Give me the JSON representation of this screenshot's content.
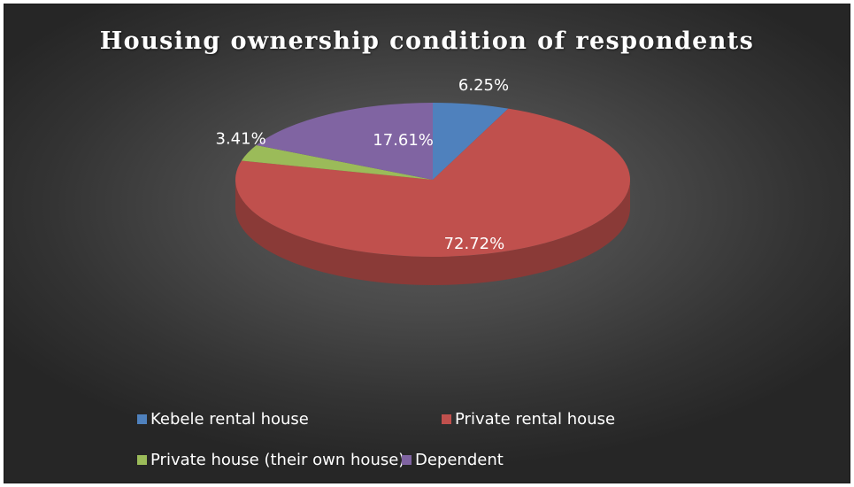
{
  "chart_data": {
    "type": "pie",
    "title": "Housing ownership condition of respondents",
    "categories": [
      "Kebele rental house",
      "Private rental house",
      "Private house (their own house)",
      "Dependent"
    ],
    "values": [
      6.25,
      72.72,
      3.41,
      17.61
    ],
    "value_labels": [
      "6.25%",
      "72.72%",
      "3.41%",
      "17.61%"
    ],
    "colors": [
      "#4f81bd",
      "#c0504d",
      "#9bbb59",
      "#8064a2"
    ],
    "legend_position": "bottom",
    "style": "3d"
  }
}
